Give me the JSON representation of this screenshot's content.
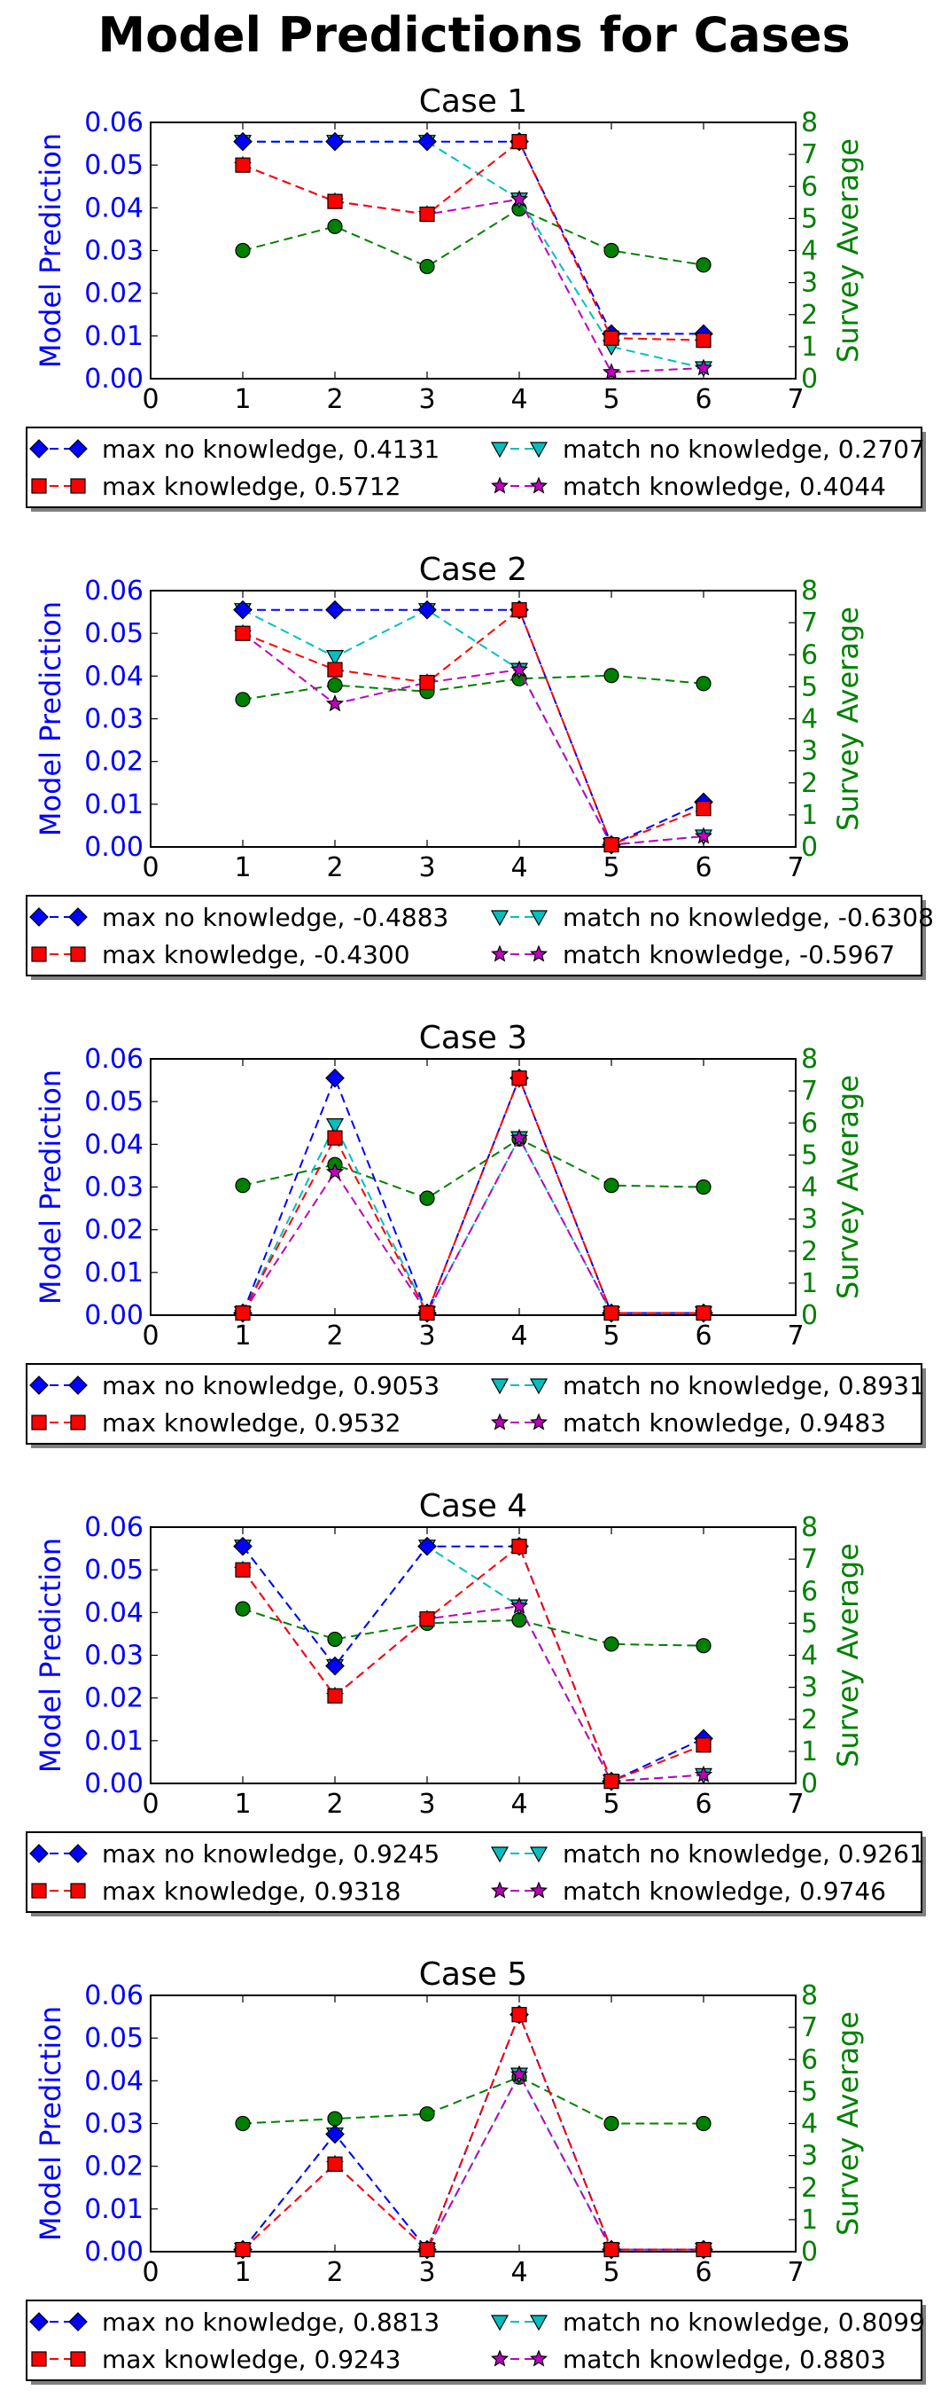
{
  "title": "Model Predictions for Cases",
  "axis_labels": {
    "left": "Model Prediction",
    "right": "Survey Average"
  },
  "colors": {
    "left_axis": "#0000ff",
    "right_axis": "#008000",
    "max_no_knowledge": "#0000ff",
    "max_knowledge": "#ff0000",
    "match_no_knowledge": "#00bfbf",
    "match_knowledge": "#bf00bf",
    "survey": "#008000"
  },
  "chart_data": [
    {
      "type": "line",
      "title": "Case 1",
      "x": [
        1,
        2,
        3,
        4,
        5,
        6
      ],
      "xlim": [
        0,
        7
      ],
      "ylim_left": [
        0,
        0.06
      ],
      "ylim_right": [
        0,
        8
      ],
      "left_ticks": [
        "0.00",
        "0.01",
        "0.02",
        "0.03",
        "0.04",
        "0.05",
        "0.06"
      ],
      "right_ticks": [
        "0",
        "1",
        "2",
        "3",
        "4",
        "5",
        "6",
        "7",
        "8"
      ],
      "x_ticks": [
        "0",
        "1",
        "2",
        "3",
        "4",
        "5",
        "6",
        "7"
      ],
      "legend_position": "below",
      "series": [
        {
          "key": "max_no_knowledge",
          "axis": "left",
          "marker": "diamond",
          "values": [
            0.0555,
            0.0555,
            0.0555,
            0.0555,
            0.0105,
            0.0105
          ]
        },
        {
          "key": "max_knowledge",
          "axis": "left",
          "marker": "square",
          "values": [
            0.05,
            0.0415,
            0.0385,
            0.0555,
            0.0095,
            0.009
          ]
        },
        {
          "key": "match_no_knowledge",
          "axis": "left",
          "marker": "triangle",
          "values": [
            0.0555,
            0.0555,
            0.0555,
            0.042,
            0.0075,
            0.0025
          ]
        },
        {
          "key": "match_knowledge",
          "axis": "left",
          "marker": "star",
          "values": [
            0.05,
            0.0415,
            0.0385,
            0.042,
            0.0015,
            0.0025
          ]
        },
        {
          "key": "survey",
          "axis": "right",
          "marker": "circle",
          "values": [
            4.0,
            4.75,
            3.5,
            5.3,
            4.0,
            3.55
          ]
        }
      ],
      "legend": [
        {
          "key": "max_no_knowledge",
          "marker": "diamond",
          "label": "max no knowledge, 0.4131"
        },
        {
          "key": "max_knowledge",
          "marker": "square",
          "label": "max knowledge, 0.5712"
        },
        {
          "key": "match_no_knowledge",
          "marker": "triangle",
          "label": "match no knowledge, 0.2707"
        },
        {
          "key": "match_knowledge",
          "marker": "star",
          "label": "match knowledge, 0.4044"
        }
      ]
    },
    {
      "type": "line",
      "title": "Case 2",
      "x": [
        1,
        2,
        3,
        4,
        5,
        6
      ],
      "xlim": [
        0,
        7
      ],
      "ylim_left": [
        0,
        0.06
      ],
      "ylim_right": [
        0,
        8
      ],
      "left_ticks": [
        "0.00",
        "0.01",
        "0.02",
        "0.03",
        "0.04",
        "0.05",
        "0.06"
      ],
      "right_ticks": [
        "0",
        "1",
        "2",
        "3",
        "4",
        "5",
        "6",
        "7",
        "8"
      ],
      "x_ticks": [
        "0",
        "1",
        "2",
        "3",
        "4",
        "5",
        "6",
        "7"
      ],
      "legend_position": "below",
      "series": [
        {
          "key": "max_no_knowledge",
          "axis": "left",
          "marker": "diamond",
          "values": [
            0.0555,
            0.0555,
            0.0555,
            0.0555,
            0.0005,
            0.0105
          ]
        },
        {
          "key": "max_knowledge",
          "axis": "left",
          "marker": "square",
          "values": [
            0.05,
            0.0415,
            0.0385,
            0.0555,
            0.0005,
            0.009
          ]
        },
        {
          "key": "match_no_knowledge",
          "axis": "left",
          "marker": "triangle",
          "values": [
            0.0555,
            0.0445,
            0.0555,
            0.0415,
            0.0005,
            0.0025
          ]
        },
        {
          "key": "match_knowledge",
          "axis": "left",
          "marker": "star",
          "values": [
            0.05,
            0.0335,
            0.0385,
            0.0415,
            0.0005,
            0.0025
          ]
        },
        {
          "key": "survey",
          "axis": "right",
          "marker": "circle",
          "values": [
            4.6,
            5.05,
            4.85,
            5.25,
            5.35,
            5.1
          ]
        }
      ],
      "legend": [
        {
          "key": "max_no_knowledge",
          "marker": "diamond",
          "label": "max no knowledge, -0.4883"
        },
        {
          "key": "max_knowledge",
          "marker": "square",
          "label": "max knowledge, -0.4300"
        },
        {
          "key": "match_no_knowledge",
          "marker": "triangle",
          "label": "match no knowledge, -0.6308"
        },
        {
          "key": "match_knowledge",
          "marker": "star",
          "label": "match knowledge, -0.5967"
        }
      ]
    },
    {
      "type": "line",
      "title": "Case 3",
      "x": [
        1,
        2,
        3,
        4,
        5,
        6
      ],
      "xlim": [
        0,
        7
      ],
      "ylim_left": [
        0,
        0.06
      ],
      "ylim_right": [
        0,
        8
      ],
      "left_ticks": [
        "0.00",
        "0.01",
        "0.02",
        "0.03",
        "0.04",
        "0.05",
        "0.06"
      ],
      "right_ticks": [
        "0",
        "1",
        "2",
        "3",
        "4",
        "5",
        "6",
        "7",
        "8"
      ],
      "x_ticks": [
        "0",
        "1",
        "2",
        "3",
        "4",
        "5",
        "6",
        "7"
      ],
      "legend_position": "below",
      "series": [
        {
          "key": "max_no_knowledge",
          "axis": "left",
          "marker": "diamond",
          "values": [
            0.0005,
            0.0555,
            0.0005,
            0.0555,
            0.0005,
            0.0005
          ]
        },
        {
          "key": "max_knowledge",
          "axis": "left",
          "marker": "square",
          "values": [
            0.0005,
            0.0415,
            0.0005,
            0.0555,
            0.0005,
            0.0005
          ]
        },
        {
          "key": "match_no_knowledge",
          "axis": "left",
          "marker": "triangle",
          "values": [
            0.0005,
            0.0445,
            0.0005,
            0.0415,
            0.0005,
            0.0005
          ]
        },
        {
          "key": "match_knowledge",
          "axis": "left",
          "marker": "star",
          "values": [
            0.0005,
            0.0335,
            0.0005,
            0.0415,
            0.0005,
            0.0005
          ]
        },
        {
          "key": "survey",
          "axis": "right",
          "marker": "circle",
          "values": [
            4.05,
            4.7,
            3.65,
            5.5,
            4.05,
            4.0
          ]
        }
      ],
      "legend": [
        {
          "key": "max_no_knowledge",
          "marker": "diamond",
          "label": "max no knowledge, 0.9053"
        },
        {
          "key": "max_knowledge",
          "marker": "square",
          "label": "max knowledge, 0.9532"
        },
        {
          "key": "match_no_knowledge",
          "marker": "triangle",
          "label": "match no knowledge, 0.8931"
        },
        {
          "key": "match_knowledge",
          "marker": "star",
          "label": "match knowledge, 0.9483"
        }
      ]
    },
    {
      "type": "line",
      "title": "Case 4",
      "x": [
        1,
        2,
        3,
        4,
        5,
        6
      ],
      "xlim": [
        0,
        7
      ],
      "ylim_left": [
        0,
        0.06
      ],
      "ylim_right": [
        0,
        8
      ],
      "left_ticks": [
        "0.00",
        "0.01",
        "0.02",
        "0.03",
        "0.04",
        "0.05",
        "0.06"
      ],
      "right_ticks": [
        "0",
        "1",
        "2",
        "3",
        "4",
        "5",
        "6",
        "7",
        "8"
      ],
      "x_ticks": [
        "0",
        "1",
        "2",
        "3",
        "4",
        "5",
        "6",
        "7"
      ],
      "legend_position": "below",
      "series": [
        {
          "key": "max_no_knowledge",
          "axis": "left",
          "marker": "diamond",
          "values": [
            0.0555,
            0.0275,
            0.0555,
            0.0555,
            0.0005,
            0.0105
          ]
        },
        {
          "key": "max_knowledge",
          "axis": "left",
          "marker": "square",
          "values": [
            0.05,
            0.0205,
            0.0385,
            0.0555,
            0.0005,
            0.009
          ]
        },
        {
          "key": "match_no_knowledge",
          "axis": "left",
          "marker": "triangle",
          "values": [
            0.0555,
            0.0275,
            0.0555,
            0.0415,
            0.0005,
            0.002
          ]
        },
        {
          "key": "match_knowledge",
          "axis": "left",
          "marker": "star",
          "values": [
            0.05,
            0.0205,
            0.0385,
            0.0415,
            0.0005,
            0.002
          ]
        },
        {
          "key": "survey",
          "axis": "right",
          "marker": "circle",
          "values": [
            5.45,
            4.5,
            5.0,
            5.1,
            4.35,
            4.3
          ]
        }
      ],
      "legend": [
        {
          "key": "max_no_knowledge",
          "marker": "diamond",
          "label": "max no knowledge, 0.9245"
        },
        {
          "key": "max_knowledge",
          "marker": "square",
          "label": "max knowledge, 0.9318"
        },
        {
          "key": "match_no_knowledge",
          "marker": "triangle",
          "label": "match no knowledge, 0.9261"
        },
        {
          "key": "match_knowledge",
          "marker": "star",
          "label": "match knowledge, 0.9746"
        }
      ]
    },
    {
      "type": "line",
      "title": "Case 5",
      "x": [
        1,
        2,
        3,
        4,
        5,
        6
      ],
      "xlim": [
        0,
        7
      ],
      "ylim_left": [
        0,
        0.06
      ],
      "ylim_right": [
        0,
        8
      ],
      "left_ticks": [
        "0.00",
        "0.01",
        "0.02",
        "0.03",
        "0.04",
        "0.05",
        "0.06"
      ],
      "right_ticks": [
        "0",
        "1",
        "2",
        "3",
        "4",
        "5",
        "6",
        "7",
        "8"
      ],
      "x_ticks": [
        "0",
        "1",
        "2",
        "3",
        "4",
        "5",
        "6",
        "7"
      ],
      "legend_position": "below",
      "series": [
        {
          "key": "max_no_knowledge",
          "axis": "left",
          "marker": "diamond",
          "values": [
            0.0005,
            0.0275,
            0.0005,
            0.0555,
            0.0005,
            0.0005
          ]
        },
        {
          "key": "max_knowledge",
          "axis": "left",
          "marker": "square",
          "values": [
            0.0005,
            0.0205,
            0.0005,
            0.0555,
            0.0005,
            0.0005
          ]
        },
        {
          "key": "match_no_knowledge",
          "axis": "left",
          "marker": "triangle",
          "values": [
            0.0005,
            0.0275,
            0.0005,
            0.0415,
            0.0005,
            0.0005
          ]
        },
        {
          "key": "match_knowledge",
          "axis": "left",
          "marker": "star",
          "values": [
            0.0005,
            0.0205,
            0.0005,
            0.0415,
            0.0005,
            0.0005
          ]
        },
        {
          "key": "survey",
          "axis": "right",
          "marker": "circle",
          "values": [
            4.0,
            4.15,
            4.3,
            5.45,
            4.0,
            4.0
          ]
        }
      ],
      "legend": [
        {
          "key": "max_no_knowledge",
          "marker": "diamond",
          "label": "max no knowledge, 0.8813"
        },
        {
          "key": "max_knowledge",
          "marker": "square",
          "label": "max knowledge, 0.9243"
        },
        {
          "key": "match_no_knowledge",
          "marker": "triangle",
          "label": "match no knowledge, 0.8099"
        },
        {
          "key": "match_knowledge",
          "marker": "star",
          "label": "match knowledge, 0.8803"
        }
      ]
    }
  ]
}
